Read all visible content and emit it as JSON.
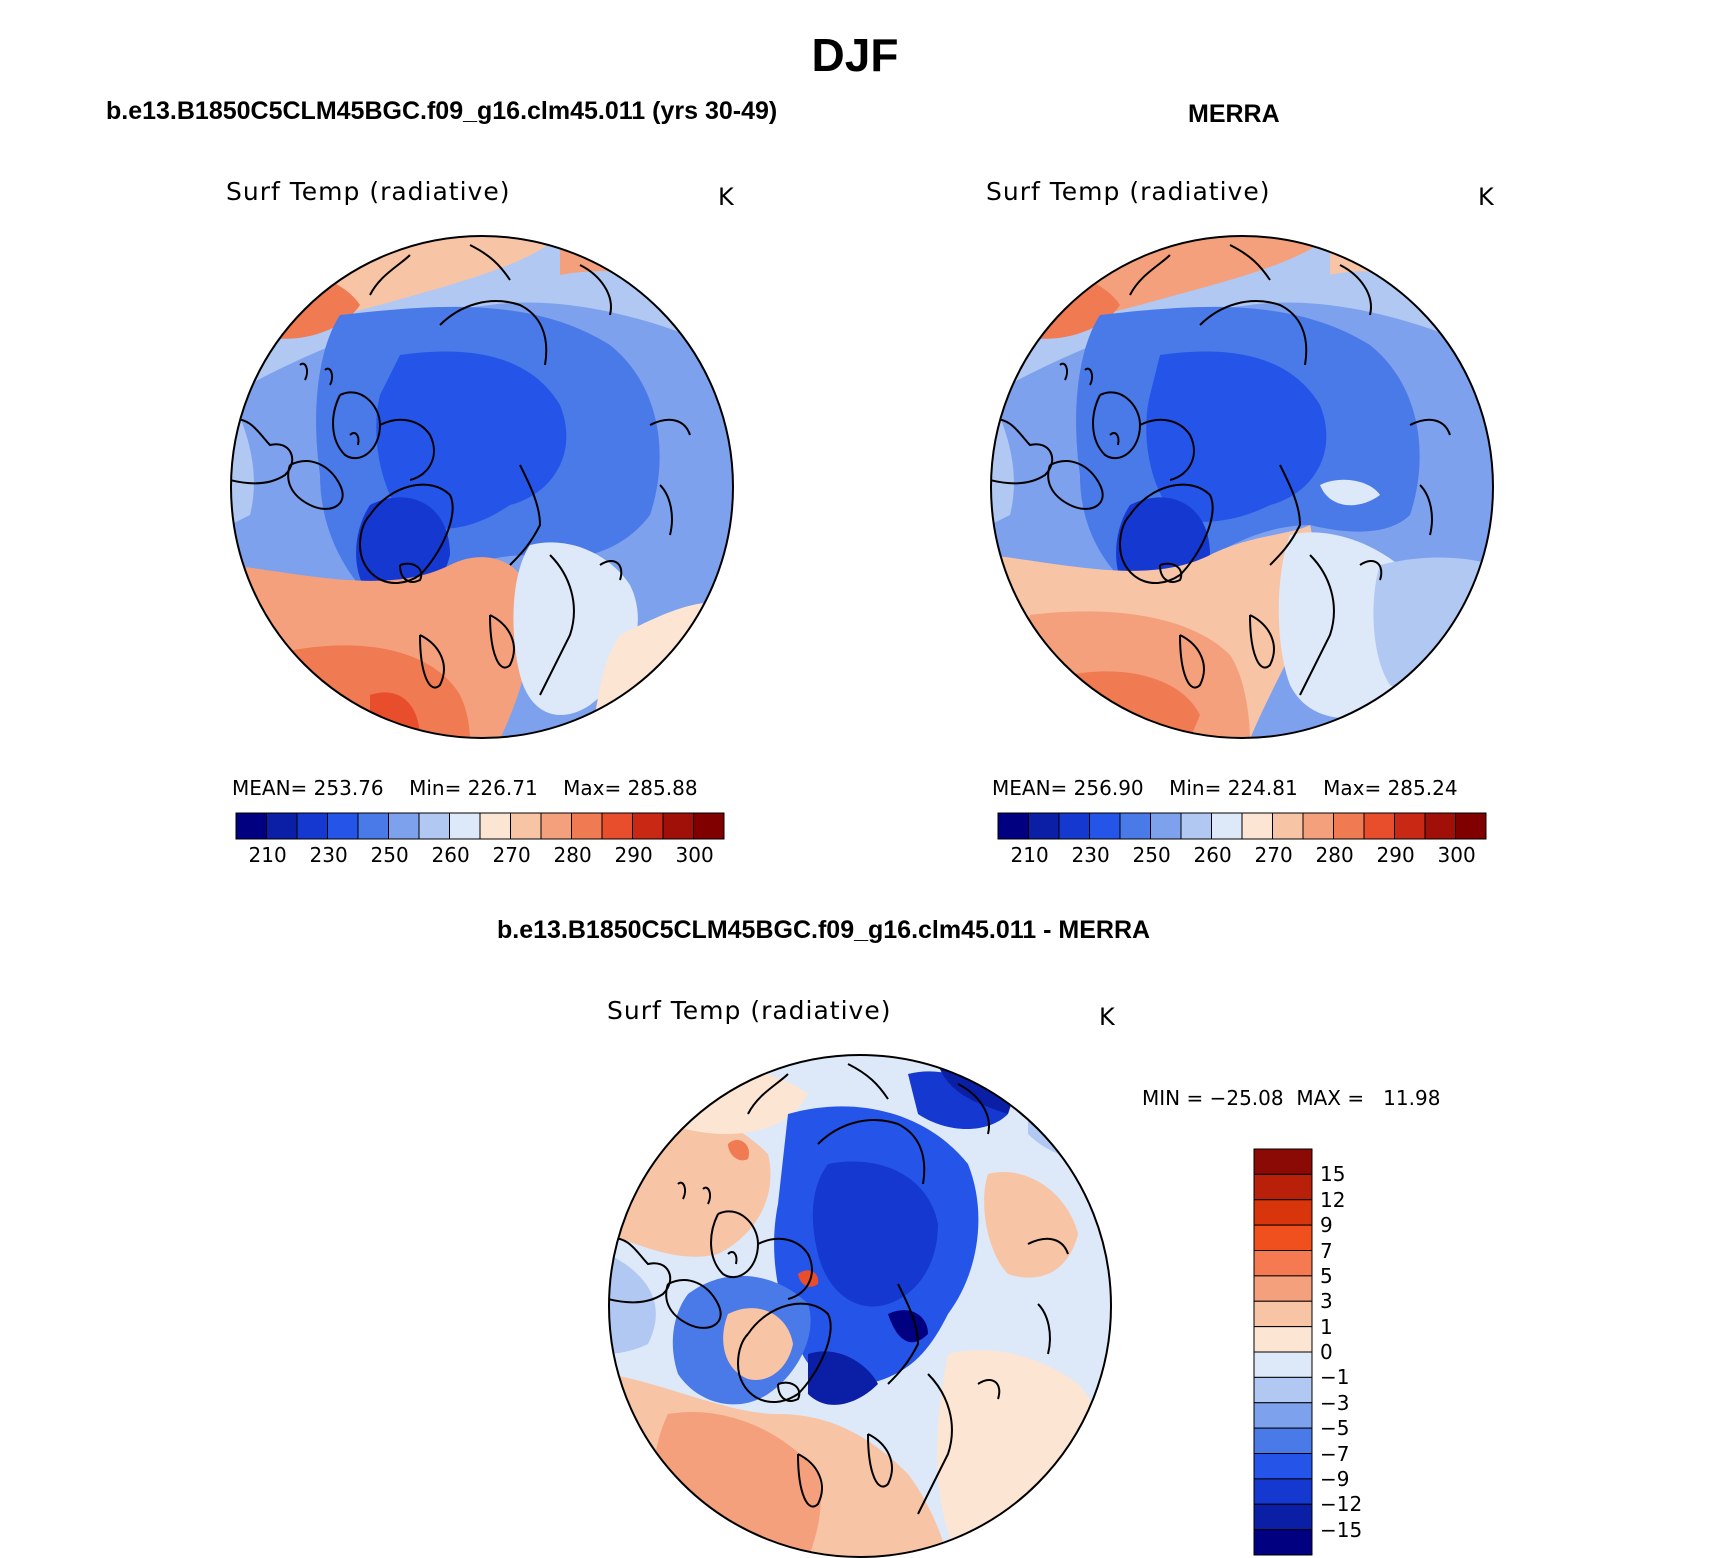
{
  "title": "DJF",
  "panels": [
    {
      "case_title": "b.e13.B1850C5CLM45BGC.f09_g16.clm45.011 (yrs 30-49)",
      "variable": "Surf Temp (radiative)",
      "units": "K",
      "stats": {
        "mean_label": "MEAN=",
        "mean": "253.76",
        "min_label": "Min=",
        "min": "226.71",
        "max_label": "Max=",
        "max": "285.88"
      },
      "colorbar_ticks": [
        "210",
        "230",
        "250",
        "260",
        "270",
        "280",
        "290",
        "300"
      ]
    },
    {
      "case_title": "MERRA",
      "variable": "Surf Temp (radiative)",
      "units": "K",
      "stats": {
        "mean_label": "MEAN=",
        "mean": "256.90",
        "min_label": "Min=",
        "min": "224.81",
        "max_label": "Max=",
        "max": "285.24"
      },
      "colorbar_ticks": [
        "210",
        "230",
        "250",
        "260",
        "270",
        "280",
        "290",
        "300"
      ]
    }
  ],
  "diff_panel": {
    "case_title": "b.e13.B1850C5CLM45BGC.f09_g16.clm45.011 - MERRA",
    "variable": "Surf Temp (radiative)",
    "units": "K",
    "stats": {
      "min_label": "MIN =",
      "min": "−25.08",
      "max_label": "MAX =",
      "max": "11.98"
    },
    "colorbar_ticks": [
      "15",
      "12",
      "9",
      "7",
      "5",
      "3",
      "1",
      "0",
      "−1",
      "−3",
      "−5",
      "−7",
      "−9",
      "−12",
      "−15"
    ]
  },
  "colors": {
    "abs_scale": [
      "#000080",
      "#0a1fa6",
      "#1438d0",
      "#2555e8",
      "#4a7ae8",
      "#7ea1ee",
      "#b0c8f2",
      "#dde9f8",
      "#fde5d3",
      "#f8c4a6",
      "#f5a07c",
      "#f07a52",
      "#e84e2c",
      "#c82814",
      "#a01008",
      "#800000"
    ],
    "diff_scale": [
      "#8c0a05",
      "#b8200a",
      "#d8350d",
      "#f0501e",
      "#f57a52",
      "#f5a07c",
      "#f8c4a6",
      "#fde5d3",
      "#dde9f8",
      "#b0c8f2",
      "#7ea1ee",
      "#4a7ae8",
      "#2555e8",
      "#1438d0",
      "#0a1fa6",
      "#000080"
    ]
  }
}
